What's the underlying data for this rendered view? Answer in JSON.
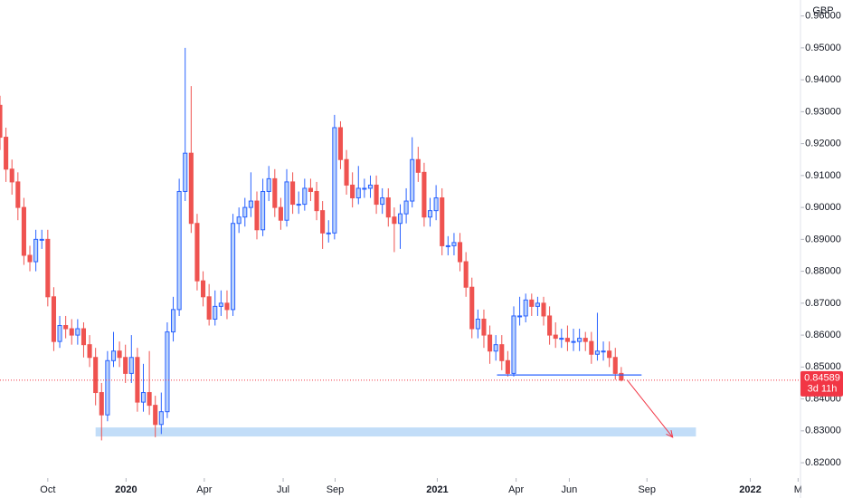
{
  "chart_data": {
    "type": "candlestick",
    "currency": "GBP",
    "up_color": "#2962ff",
    "up_fill": "#bbd3fb",
    "down_color": "#ef5350",
    "candles": {
      "open": [
        0.932,
        0.922,
        0.912,
        0.908,
        0.9,
        0.885,
        0.883,
        0.89,
        0.89,
        0.872,
        0.858,
        0.863,
        0.862,
        0.86,
        0.862,
        0.857,
        0.853,
        0.842,
        0.835,
        0.852,
        0.855,
        0.853,
        0.848,
        0.853,
        0.839,
        0.842,
        0.838,
        0.832,
        0.836,
        0.861,
        0.868,
        0.905,
        0.917,
        0.895,
        0.877,
        0.872,
        0.865,
        0.869,
        0.87,
        0.868,
        0.895,
        0.897,
        0.9,
        0.902,
        0.893,
        0.905,
        0.909,
        0.9,
        0.896,
        0.908,
        0.901,
        0.901,
        0.906,
        0.905,
        0.899,
        0.892,
        0.892,
        0.925,
        0.915,
        0.907,
        0.903,
        0.906,
        0.906,
        0.907,
        0.901,
        0.903,
        0.897,
        0.895,
        0.898,
        0.902,
        0.915,
        0.911,
        0.897,
        0.899,
        0.903,
        0.888,
        0.888,
        0.889,
        0.883,
        0.875,
        0.862,
        0.865,
        0.86,
        0.855,
        0.857,
        0.852,
        0.848,
        0.866,
        0.866,
        0.871,
        0.869,
        0.87,
        0.866,
        0.86,
        0.859,
        0.859,
        0.858,
        0.858,
        0.859,
        0.858,
        0.854,
        0.855,
        0.855,
        0.853,
        0.848
      ],
      "high": [
        0.935,
        0.925,
        0.915,
        0.911,
        0.903,
        0.888,
        0.893,
        0.893,
        0.893,
        0.875,
        0.866,
        0.866,
        0.865,
        0.865,
        0.864,
        0.86,
        0.856,
        0.845,
        0.855,
        0.861,
        0.858,
        0.857,
        0.86,
        0.856,
        0.851,
        0.855,
        0.841,
        0.842,
        0.864,
        0.872,
        0.909,
        0.95,
        0.938,
        0.898,
        0.88,
        0.876,
        0.874,
        0.874,
        0.874,
        0.898,
        0.9,
        0.903,
        0.911,
        0.905,
        0.909,
        0.913,
        0.912,
        0.903,
        0.912,
        0.911,
        0.905,
        0.909,
        0.909,
        0.908,
        0.902,
        0.896,
        0.929,
        0.927,
        0.918,
        0.911,
        0.913,
        0.909,
        0.91,
        0.91,
        0.906,
        0.906,
        0.9,
        0.901,
        0.906,
        0.922,
        0.919,
        0.914,
        0.903,
        0.907,
        0.906,
        0.891,
        0.892,
        0.892,
        0.886,
        0.878,
        0.868,
        0.868,
        0.863,
        0.86,
        0.86,
        0.855,
        0.869,
        0.872,
        0.873,
        0.873,
        0.872,
        0.872,
        0.869,
        0.864,
        0.862,
        0.863,
        0.862,
        0.862,
        0.861,
        0.861,
        0.867,
        0.858,
        0.858,
        0.856,
        0.85
      ],
      "low": [
        0.918,
        0.908,
        0.904,
        0.896,
        0.882,
        0.88,
        0.88,
        0.887,
        0.869,
        0.855,
        0.856,
        0.859,
        0.857,
        0.857,
        0.853,
        0.85,
        0.838,
        0.827,
        0.833,
        0.85,
        0.85,
        0.845,
        0.845,
        0.836,
        0.836,
        0.835,
        0.828,
        0.829,
        0.834,
        0.858,
        0.866,
        0.902,
        0.892,
        0.874,
        0.869,
        0.863,
        0.863,
        0.866,
        0.865,
        0.866,
        0.892,
        0.894,
        0.897,
        0.89,
        0.891,
        0.902,
        0.897,
        0.893,
        0.894,
        0.898,
        0.898,
        0.899,
        0.902,
        0.896,
        0.887,
        0.889,
        0.89,
        0.912,
        0.904,
        0.9,
        0.901,
        0.903,
        0.903,
        0.898,
        0.898,
        0.894,
        0.886,
        0.887,
        0.895,
        0.9,
        0.908,
        0.894,
        0.894,
        0.896,
        0.885,
        0.885,
        0.885,
        0.88,
        0.872,
        0.859,
        0.859,
        0.856,
        0.851,
        0.852,
        0.849,
        0.847,
        0.847,
        0.863,
        0.864,
        0.866,
        0.866,
        0.863,
        0.857,
        0.856,
        0.856,
        0.855,
        0.855,
        0.855,
        0.855,
        0.851,
        0.852,
        0.852,
        0.85,
        0.846,
        0.8455
      ],
      "close": [
        0.922,
        0.912,
        0.908,
        0.9,
        0.885,
        0.883,
        0.89,
        0.89,
        0.872,
        0.858,
        0.863,
        0.862,
        0.86,
        0.862,
        0.857,
        0.853,
        0.842,
        0.835,
        0.852,
        0.855,
        0.853,
        0.848,
        0.853,
        0.839,
        0.842,
        0.838,
        0.832,
        0.836,
        0.861,
        0.868,
        0.905,
        0.917,
        0.895,
        0.877,
        0.872,
        0.865,
        0.869,
        0.87,
        0.868,
        0.895,
        0.897,
        0.9,
        0.902,
        0.893,
        0.905,
        0.909,
        0.9,
        0.896,
        0.908,
        0.901,
        0.901,
        0.906,
        0.905,
        0.899,
        0.892,
        0.892,
        0.925,
        0.915,
        0.907,
        0.903,
        0.906,
        0.906,
        0.907,
        0.901,
        0.903,
        0.897,
        0.895,
        0.898,
        0.902,
        0.915,
        0.911,
        0.897,
        0.899,
        0.903,
        0.888,
        0.888,
        0.889,
        0.883,
        0.875,
        0.862,
        0.865,
        0.86,
        0.855,
        0.857,
        0.852,
        0.848,
        0.866,
        0.866,
        0.871,
        0.869,
        0.87,
        0.866,
        0.86,
        0.859,
        0.859,
        0.858,
        0.858,
        0.859,
        0.858,
        0.854,
        0.855,
        0.855,
        0.853,
        0.848,
        0.8459
      ]
    },
    "xlim": [
      0,
      134
    ],
    "xticks": [
      {
        "value": 8.0,
        "label": "Oct"
      },
      {
        "value": 21.1,
        "label": "2020"
      },
      {
        "value": 34.2,
        "label": "Apr"
      },
      {
        "value": 47.4,
        "label": "Jul"
      },
      {
        "value": 56.1,
        "label": "Sep"
      },
      {
        "value": 73.2,
        "label": "2021"
      },
      {
        "value": 86.4,
        "label": "Apr"
      },
      {
        "value": 95.3,
        "label": "Jun"
      },
      {
        "value": 108.3,
        "label": "Sep"
      },
      {
        "value": 125.6,
        "label": "2022"
      },
      {
        "value": 133.6,
        "label": "M"
      }
    ],
    "ylim": [
      0.8152,
      0.965
    ],
    "yticks": [
      {
        "value": 0.82,
        "label": "0.82000"
      },
      {
        "value": 0.83,
        "label": "0.83000"
      },
      {
        "value": 0.84,
        "label": "0.84000"
      },
      {
        "value": 0.85,
        "label": "0.85000"
      },
      {
        "value": 0.86,
        "label": "0.86000"
      },
      {
        "value": 0.87,
        "label": "0.87000"
      },
      {
        "value": 0.88,
        "label": "0.88000"
      },
      {
        "value": 0.89,
        "label": "0.89000"
      },
      {
        "value": 0.9,
        "label": "0.90000"
      },
      {
        "value": 0.91,
        "label": "0.91000"
      },
      {
        "value": 0.92,
        "label": "0.92000"
      },
      {
        "value": 0.93,
        "label": "0.93000"
      },
      {
        "value": 0.94,
        "label": "0.94000"
      },
      {
        "value": 0.95,
        "label": "0.95000"
      },
      {
        "value": 0.96,
        "label": "0.96000"
      }
    ],
    "last_price": {
      "value": 0.84589,
      "label": "0.84589",
      "countdown": "3d 11h",
      "color": "#f23645"
    },
    "support_line": {
      "value": 0.8475,
      "x": [
        83.2,
        107.4
      ],
      "color": "#2962ff"
    },
    "zone": {
      "low": 0.8288,
      "high": 0.8305,
      "x": [
        16.0,
        116.5
      ],
      "color": "#bbd9f7"
    },
    "arrow": {
      "x": [
        105.0,
        112.6
      ],
      "y": [
        0.8459,
        0.828
      ],
      "color": "#f23645"
    }
  }
}
